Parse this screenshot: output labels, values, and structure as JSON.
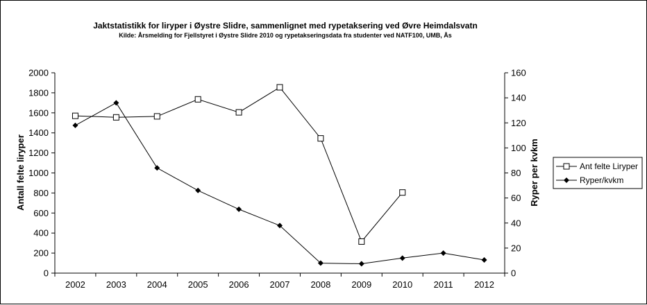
{
  "chart_data": {
    "type": "line",
    "title": "Jaktstatistikk for liryper  i Øystre  Slidre, sammenlignet med rypetaksering ved Øvre Heimdalsvatn",
    "subtitle": "Kilde: Årsmelding for Fjellstyret i Øystre  Slidre 2010 og rypetakseringsdata fra studenter ved NATF100,   UMB, Ås",
    "categories": [
      "2002",
      "2003",
      "2004",
      "2005",
      "2006",
      "2007",
      "2008",
      "2009",
      "2010",
      "2011",
      "2012"
    ],
    "y_left": {
      "label": "Antall felte liryper",
      "ylim": [
        0,
        2000
      ],
      "ticks": [
        0,
        200,
        400,
        600,
        800,
        1000,
        1200,
        1400,
        1600,
        1800,
        2000
      ]
    },
    "y_right": {
      "label": "Ryper per kvkm",
      "ylim": [
        0,
        160
      ],
      "ticks": [
        0,
        20,
        40,
        60,
        80,
        100,
        120,
        140,
        160
      ]
    },
    "series": [
      {
        "name": "Ant felte Liryper",
        "axis": "left",
        "marker": "open-square",
        "color": "#000000",
        "values": [
          1570,
          1555,
          1565,
          1735,
          1605,
          1855,
          1345,
          315,
          805,
          null,
          null
        ]
      },
      {
        "name": "Ryper/kvkm",
        "axis": "right",
        "marker": "filled-diamond",
        "color": "#000000",
        "values": [
          118,
          136,
          84,
          66,
          51,
          38,
          8,
          7.5,
          12,
          16,
          10.5
        ]
      }
    ],
    "grid": false,
    "legend": "right"
  }
}
